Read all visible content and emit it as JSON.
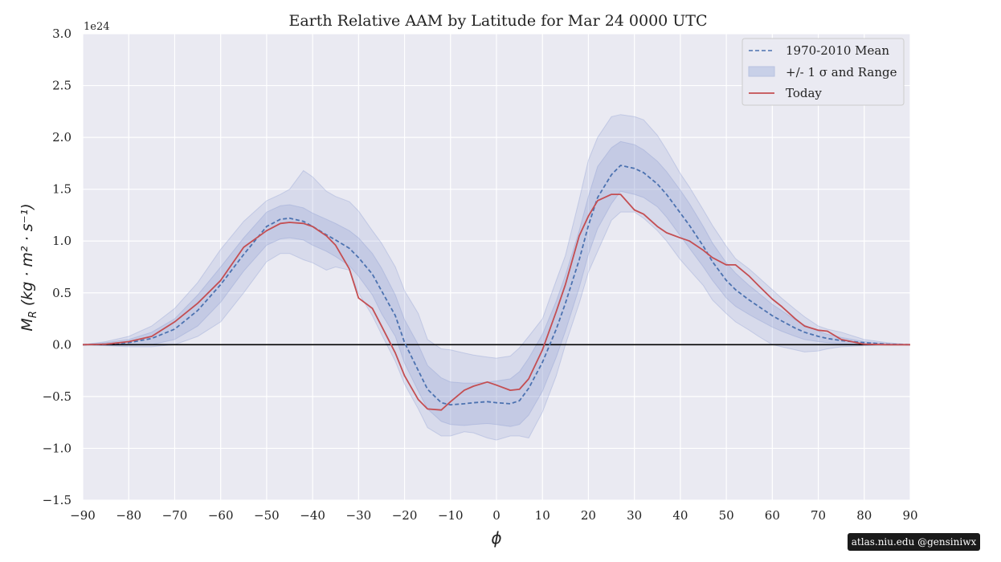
{
  "chart_data": {
    "type": "line",
    "title": "Earth Relative AAM by Latitude for Mar 24 0000 UTC",
    "xlabel": "ϕ",
    "ylabel_main": "M",
    "ylabel_sub": "R",
    "ylabel_units": "(kg · m² · s⁻¹)",
    "y_offset_label": "1e24",
    "xlim": [
      -90,
      90
    ],
    "ylim": [
      -1.5,
      3.0
    ],
    "x_ticks": [
      -90,
      -80,
      -70,
      -60,
      -50,
      -40,
      -30,
      -20,
      -10,
      0,
      10,
      20,
      30,
      40,
      50,
      60,
      70,
      80,
      90
    ],
    "x_tick_labels": [
      "−90",
      "−80",
      "−70",
      "−60",
      "−50",
      "−40",
      "−30",
      "−20",
      "−10",
      "0",
      "10",
      "20",
      "30",
      "40",
      "50",
      "60",
      "70",
      "80",
      "90"
    ],
    "y_ticks": [
      -1.5,
      -1.0,
      -0.5,
      0.0,
      0.5,
      1.0,
      1.5,
      2.0,
      2.5,
      3.0
    ],
    "y_tick_labels": [
      "−1.5",
      "−1.0",
      "−0.5",
      "0.0",
      "0.5",
      "1.0",
      "1.5",
      "2.0",
      "2.5",
      "3.0"
    ],
    "grid": true,
    "legend_position": "top-right",
    "legend": [
      {
        "label": "1970-2010 Mean",
        "style": "dashed",
        "color": "#4c72b0"
      },
      {
        "label": "+/- 1 σ and Range",
        "style": "band",
        "color": "#c8d0e8"
      },
      {
        "label": "Today",
        "style": "solid",
        "color": "#c44e52"
      }
    ],
    "x": [
      -90,
      -85,
      -80,
      -75,
      -70,
      -65,
      -60,
      -55,
      -50,
      -47,
      -45,
      -42,
      -40,
      -37,
      -35,
      -32,
      -30,
      -27,
      -25,
      -22,
      -20,
      -17,
      -15,
      -12,
      -10,
      -7,
      -5,
      -2,
      0,
      3,
      5,
      7,
      10,
      13,
      15,
      18,
      20,
      22,
      25,
      27,
      30,
      32,
      35,
      37,
      40,
      42,
      45,
      47,
      50,
      52,
      55,
      57,
      60,
      62,
      65,
      67,
      70,
      72,
      75,
      80,
      85,
      90
    ],
    "series": [
      {
        "name": "1970-2010 Mean",
        "color": "#4c72b0",
        "dash": true,
        "values": [
          0,
          0.005,
          0.02,
          0.06,
          0.15,
          0.33,
          0.58,
          0.87,
          1.14,
          1.21,
          1.22,
          1.19,
          1.14,
          1.06,
          1.01,
          0.93,
          0.84,
          0.68,
          0.52,
          0.28,
          0.02,
          -0.25,
          -0.43,
          -0.56,
          -0.58,
          -0.57,
          -0.56,
          -0.55,
          -0.56,
          -0.57,
          -0.54,
          -0.42,
          -0.17,
          0.15,
          0.4,
          0.82,
          1.15,
          1.42,
          1.64,
          1.73,
          1.7,
          1.66,
          1.55,
          1.45,
          1.27,
          1.15,
          0.95,
          0.8,
          0.62,
          0.53,
          0.43,
          0.37,
          0.28,
          0.23,
          0.16,
          0.12,
          0.08,
          0.06,
          0.04,
          0.02,
          0.005,
          0
        ]
      },
      {
        "name": "Today",
        "color": "#c44e52",
        "dash": false,
        "values": [
          0,
          0.005,
          0.03,
          0.08,
          0.22,
          0.4,
          0.62,
          0.94,
          1.1,
          1.17,
          1.18,
          1.17,
          1.14,
          1.05,
          0.96,
          0.73,
          0.45,
          0.35,
          0.18,
          -0.08,
          -0.3,
          -0.53,
          -0.62,
          -0.63,
          -0.55,
          -0.44,
          -0.4,
          -0.36,
          -0.39,
          -0.44,
          -0.43,
          -0.33,
          -0.05,
          0.32,
          0.58,
          1.05,
          1.24,
          1.39,
          1.45,
          1.45,
          1.3,
          1.26,
          1.14,
          1.08,
          1.03,
          1.0,
          0.91,
          0.84,
          0.77,
          0.77,
          0.66,
          0.57,
          0.44,
          0.37,
          0.25,
          0.18,
          0.14,
          0.13,
          0.05,
          0.005,
          0,
          0
        ]
      },
      {
        "name": "+/- 1 σ upper",
        "values": [
          0,
          0.02,
          0.05,
          0.12,
          0.25,
          0.48,
          0.75,
          1.03,
          1.28,
          1.34,
          1.35,
          1.32,
          1.27,
          1.21,
          1.17,
          1.1,
          1.03,
          0.88,
          0.74,
          0.48,
          0.24,
          0.0,
          -0.2,
          -0.32,
          -0.36,
          -0.37,
          -0.37,
          -0.36,
          -0.35,
          -0.33,
          -0.26,
          -0.13,
          0.1,
          0.42,
          0.67,
          1.1,
          1.43,
          1.72,
          1.9,
          1.96,
          1.93,
          1.88,
          1.77,
          1.67,
          1.49,
          1.36,
          1.14,
          0.98,
          0.79,
          0.69,
          0.57,
          0.5,
          0.39,
          0.33,
          0.24,
          0.19,
          0.13,
          0.1,
          0.07,
          0.03,
          0.01,
          0
        ]
      },
      {
        "name": "+/- 1 σ lower",
        "values": [
          0,
          -0.005,
          -0.005,
          0.0,
          0.05,
          0.18,
          0.41,
          0.71,
          0.96,
          1.02,
          1.03,
          1.01,
          0.96,
          0.9,
          0.85,
          0.76,
          0.66,
          0.48,
          0.3,
          0.08,
          -0.18,
          -0.45,
          -0.62,
          -0.74,
          -0.77,
          -0.78,
          -0.77,
          -0.76,
          -0.77,
          -0.79,
          -0.77,
          -0.68,
          -0.45,
          -0.12,
          0.13,
          0.55,
          0.87,
          1.12,
          1.36,
          1.48,
          1.45,
          1.42,
          1.33,
          1.23,
          1.05,
          0.93,
          0.75,
          0.62,
          0.45,
          0.37,
          0.29,
          0.24,
          0.17,
          0.13,
          0.08,
          0.05,
          0.03,
          0.02,
          0.01,
          0.0,
          0.0,
          0
        ]
      },
      {
        "name": "Range max",
        "values": [
          0,
          0.03,
          0.08,
          0.18,
          0.35,
          0.6,
          0.92,
          1.19,
          1.39,
          1.45,
          1.5,
          1.68,
          1.62,
          1.48,
          1.43,
          1.38,
          1.29,
          1.1,
          0.98,
          0.75,
          0.52,
          0.3,
          0.05,
          -0.04,
          -0.05,
          -0.08,
          -0.1,
          -0.12,
          -0.13,
          -0.11,
          -0.03,
          0.08,
          0.25,
          0.62,
          0.86,
          1.4,
          1.78,
          2.0,
          2.2,
          2.22,
          2.2,
          2.17,
          2.02,
          1.88,
          1.65,
          1.52,
          1.3,
          1.15,
          0.95,
          0.83,
          0.73,
          0.65,
          0.53,
          0.45,
          0.34,
          0.27,
          0.18,
          0.15,
          0.12,
          0.05,
          0.02,
          0
        ]
      },
      {
        "name": "Range min",
        "values": [
          0,
          -0.01,
          -0.02,
          -0.02,
          0.0,
          0.08,
          0.22,
          0.5,
          0.8,
          0.88,
          0.88,
          0.82,
          0.79,
          0.72,
          0.75,
          0.72,
          0.5,
          0.28,
          0.1,
          -0.16,
          -0.38,
          -0.62,
          -0.8,
          -0.88,
          -0.88,
          -0.84,
          -0.85,
          -0.9,
          -0.92,
          -0.88,
          -0.88,
          -0.9,
          -0.65,
          -0.3,
          0.0,
          0.4,
          0.7,
          0.9,
          1.2,
          1.28,
          1.28,
          1.22,
          1.1,
          1.0,
          0.82,
          0.72,
          0.57,
          0.43,
          0.3,
          0.22,
          0.14,
          0.08,
          0.0,
          -0.02,
          -0.05,
          -0.07,
          -0.06,
          -0.04,
          -0.02,
          -0.01,
          0.0,
          0
        ]
      }
    ]
  },
  "credit": {
    "text": "atlas.niu.edu  @gensiniwx"
  },
  "colors": {
    "plot_bg": "#eaeaf2",
    "grid": "#ffffff",
    "band": "#8a9bd0",
    "zero_line": "#000000"
  }
}
